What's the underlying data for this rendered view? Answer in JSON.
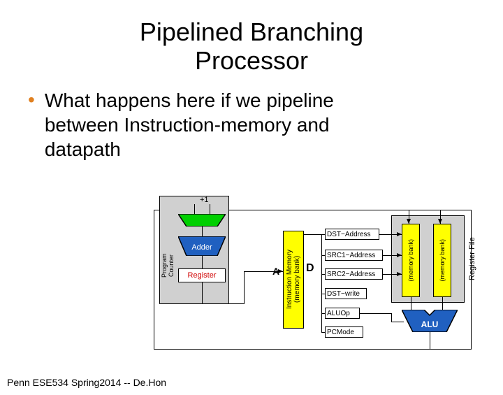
{
  "title_line1": "Pipelined Branching",
  "title_line2": "Processor",
  "bullet": {
    "dot": "•",
    "line1": "What happens here if we pipeline",
    "line2": "between Instruction-memory and",
    "line3": "datapath"
  },
  "footer": "Penn ESE534 Spring2014 -- De.Hon",
  "diagram": {
    "plus_one": "+1",
    "adder": "Adder",
    "register": "Register",
    "program_counter": "Program\nCounter",
    "instr_mem": "Instruction Memory\n(memory bank)",
    "a_label": "A",
    "d_label": "D",
    "dst_addr": "DST−Address",
    "src1_addr": "SRC1−Address",
    "src2_addr": "SRC2−Address",
    "dst_write": "DST−write",
    "aluop": "ALUOp",
    "pcmode": "PCMode",
    "mem_bank1": "(memory bank)",
    "mem_bank2": "(memory bank)",
    "reg_file": "Register File",
    "alu": "ALU",
    "colors": {
      "gray": "#d0d0d0",
      "yellow": "#ffff00",
      "blue": "#2060c0",
      "green": "#00d000",
      "red": "#d00000",
      "black": "#000000",
      "white": "#ffffff"
    }
  }
}
